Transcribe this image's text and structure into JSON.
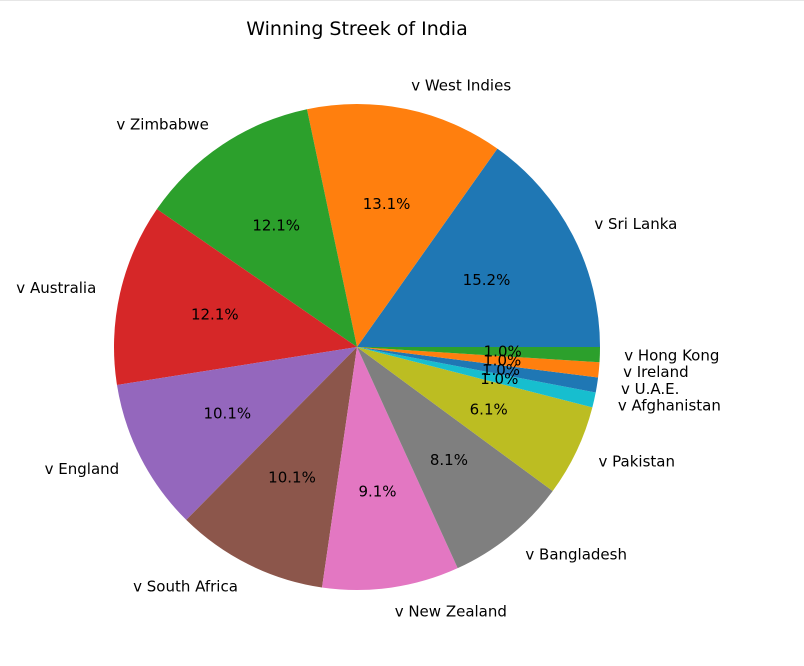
{
  "chart_data": {
    "type": "pie",
    "title": "Winning Streek of India",
    "start_angle": 0,
    "direction": "counterclockwise",
    "slices": [
      {
        "label": "v Sri Lanka",
        "value": 15.2,
        "pct": "15.2%",
        "color": "#1f77b4"
      },
      {
        "label": "v West Indies",
        "value": 13.1,
        "pct": "13.1%",
        "color": "#ff7f0e"
      },
      {
        "label": "v Zimbabwe",
        "value": 12.1,
        "pct": "12.1%",
        "color": "#2ca02c"
      },
      {
        "label": "v Australia",
        "value": 12.1,
        "pct": "12.1%",
        "color": "#d62728"
      },
      {
        "label": "v England",
        "value": 10.1,
        "pct": "10.1%",
        "color": "#9467bd"
      },
      {
        "label": "v South Africa",
        "value": 10.1,
        "pct": "10.1%",
        "color": "#8c564b"
      },
      {
        "label": "v New Zealand",
        "value": 9.1,
        "pct": "9.1%",
        "color": "#e377c2"
      },
      {
        "label": "v Bangladesh",
        "value": 8.1,
        "pct": "8.1%",
        "color": "#7f7f7f"
      },
      {
        "label": "v Pakistan",
        "value": 6.1,
        "pct": "6.1%",
        "color": "#bcbd22"
      },
      {
        "label": "v Afghanistan",
        "value": 1.0,
        "pct": "1.0%",
        "color": "#17becf"
      },
      {
        "label": "v U.A.E.",
        "value": 1.0,
        "pct": "1.0%",
        "color": "#1f77b4"
      },
      {
        "label": "v Ireland",
        "value": 1.0,
        "pct": "1.0%",
        "color": "#ff7f0e"
      },
      {
        "label": "v Hong Kong",
        "value": 1.0,
        "pct": "1.0%",
        "color": "#2ca02c"
      }
    ]
  }
}
